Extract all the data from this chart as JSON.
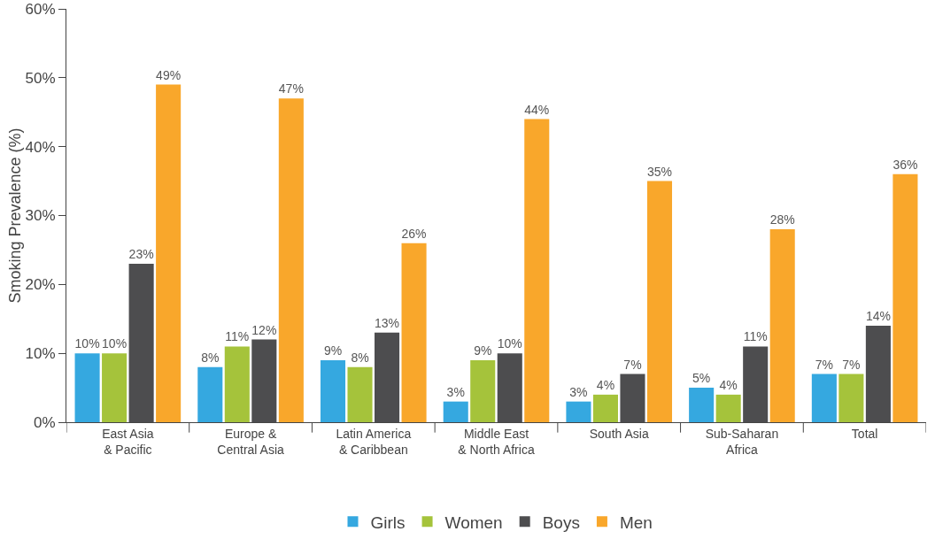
{
  "chart_data": {
    "type": "bar",
    "ylabel": "Smoking Prevalence (%)",
    "categories": [
      "East Asia\n& Pacific",
      "Europe &\nCentral Asia",
      "Latin America\n& Caribbean",
      "Middle East\n& North Africa",
      "South Asia",
      "Sub-Saharan\nAfrica",
      "Total"
    ],
    "series": [
      {
        "name": "Girls",
        "color": "#35a8e0",
        "values": [
          10,
          8,
          9,
          3,
          3,
          5,
          7
        ],
        "value_labels": [
          "10%",
          "8%",
          "9%",
          "3%",
          "3%",
          "5%",
          "7%"
        ]
      },
      {
        "name": "Women",
        "color": "#a5c33b",
        "values": [
          10,
          11,
          8,
          9,
          4,
          4,
          7
        ],
        "value_labels": [
          "10%",
          "11%",
          "8%",
          "9%",
          "4%",
          "4%",
          "7%"
        ]
      },
      {
        "name": "Boys",
        "color": "#4d4d4f",
        "values": [
          23,
          12,
          13,
          10,
          7,
          11,
          14
        ],
        "value_labels": [
          "23%",
          "12%",
          "13%",
          "10%",
          "7%",
          "11%",
          "14%"
        ]
      },
      {
        "name": "Men",
        "color": "#f9a72b",
        "values": [
          49,
          47,
          26,
          44,
          35,
          28,
          36
        ],
        "value_labels": [
          "49%",
          "47%",
          "26%",
          "44%",
          "35%",
          "28%",
          "36%"
        ]
      }
    ],
    "ylim": [
      0,
      60
    ],
    "yticks": [
      {
        "value": 0,
        "label": "0%"
      },
      {
        "value": 10,
        "label": "10%"
      },
      {
        "value": 20,
        "label": "20%"
      },
      {
        "value": 30,
        "label": "30%"
      },
      {
        "value": 40,
        "label": "40%"
      },
      {
        "value": 50,
        "label": "50%"
      },
      {
        "value": 60,
        "label": "60%"
      }
    ],
    "grid": false,
    "legend": "bottom"
  }
}
